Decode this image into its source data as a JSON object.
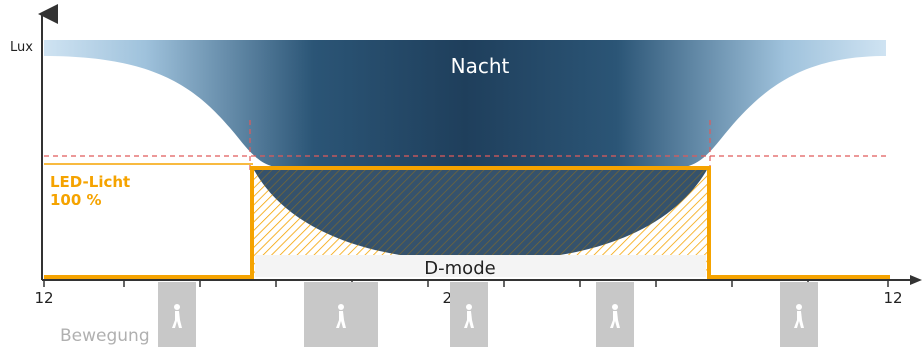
{
  "diagram": {
    "y_axis_label": "Lux",
    "night_label": "Nacht",
    "led_label_line1": "LED-Licht",
    "led_label_line2": "100 %",
    "dmode_label": "D-mode",
    "motion_label": "Bewegung",
    "time_ticks": [
      "12",
      "24",
      "12"
    ],
    "colors": {
      "night_dark": "#1f3f5c",
      "night_light": "#a9c9e2",
      "led_orange": "#f5a300",
      "threshold_dashed": "#e05a5a",
      "axis": "#333333",
      "motion_gray": "#c8c8c8",
      "dmode_bg": "#f3f3f3"
    },
    "icons": [
      "walking-person-icon",
      "walking-person-icon",
      "walking-person-icon",
      "walking-person-icon",
      "walking-person-icon"
    ]
  }
}
